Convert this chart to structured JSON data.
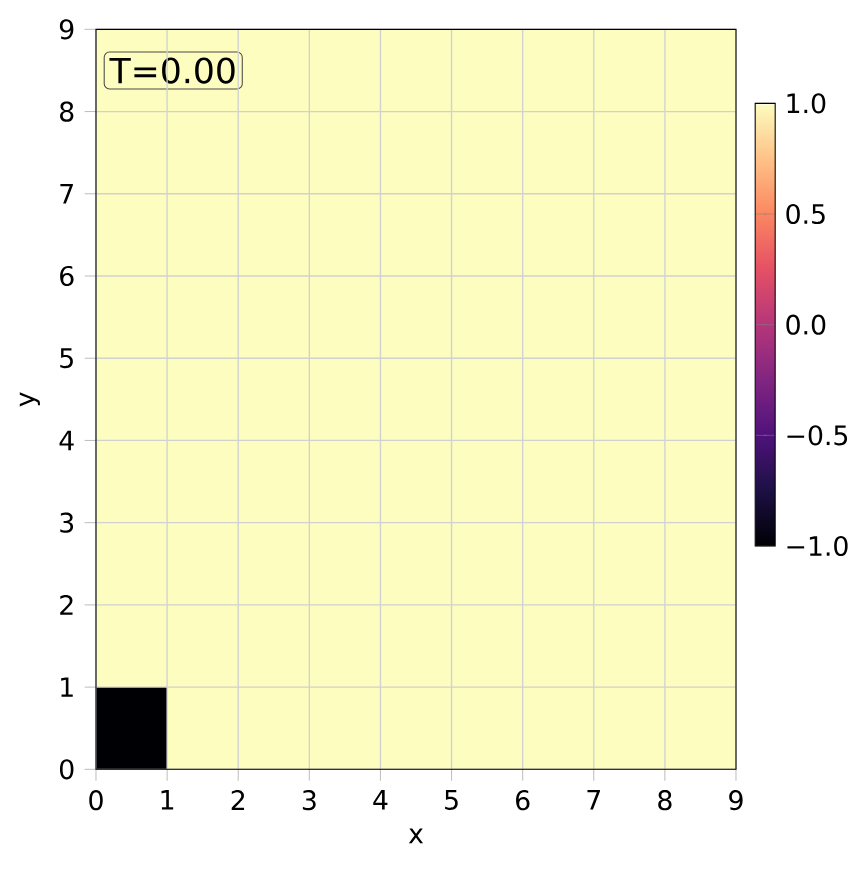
{
  "chart_data": {
    "type": "heatmap",
    "cells": [
      [
        1,
        1,
        1,
        1,
        1,
        1,
        1,
        1,
        1
      ],
      [
        1,
        1,
        1,
        1,
        1,
        1,
        1,
        1,
        1
      ],
      [
        1,
        1,
        1,
        1,
        1,
        1,
        1,
        1,
        1
      ],
      [
        1,
        1,
        1,
        1,
        1,
        1,
        1,
        1,
        1
      ],
      [
        1,
        1,
        1,
        1,
        1,
        1,
        1,
        1,
        1
      ],
      [
        1,
        1,
        1,
        1,
        1,
        1,
        1,
        1,
        1
      ],
      [
        1,
        1,
        1,
        1,
        1,
        1,
        1,
        1,
        1
      ],
      [
        1,
        1,
        1,
        1,
        1,
        1,
        1,
        1,
        1
      ],
      [
        -1,
        1,
        1,
        1,
        1,
        1,
        1,
        1,
        1
      ]
    ],
    "xlim": [
      0,
      9
    ],
    "ylim": [
      0,
      9
    ],
    "xticks": [
      0,
      1,
      2,
      3,
      4,
      5,
      6,
      7,
      8,
      9
    ],
    "yticks": [
      0,
      1,
      2,
      3,
      4,
      5,
      6,
      7,
      8,
      9
    ],
    "xlabel": "x",
    "ylabel": "y",
    "clim": [
      -1,
      1
    ],
    "cticks": [
      {
        "value": -1,
        "label": "−1.0"
      },
      {
        "value": -0.5,
        "label": "−0.5"
      },
      {
        "value": 0,
        "label": "0.0"
      },
      {
        "value": 0.5,
        "label": "0.5"
      },
      {
        "value": 1,
        "label": "1.0"
      }
    ],
    "grid": true,
    "annotations": [
      "T=0.00"
    ]
  }
}
